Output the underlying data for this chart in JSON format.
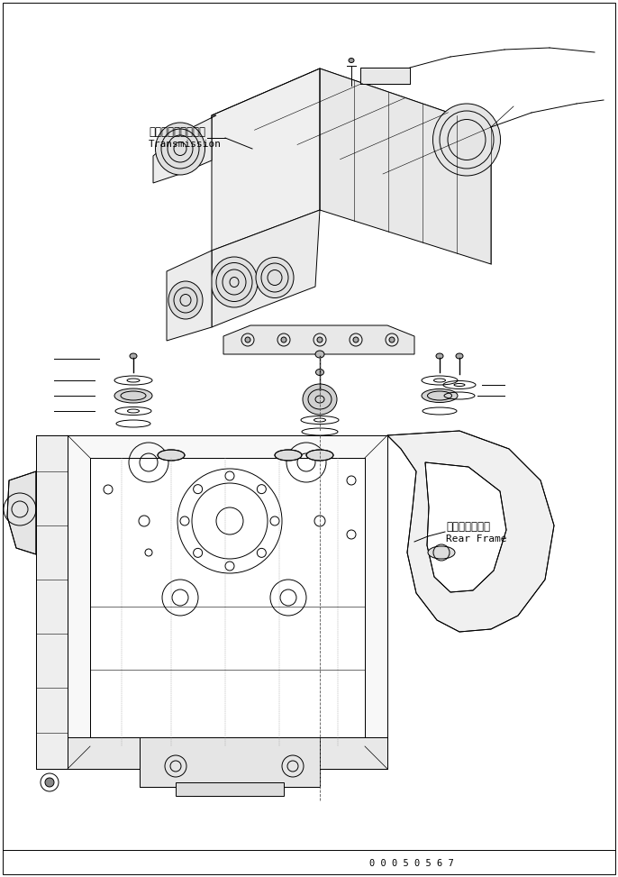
{
  "bg_color": "#ffffff",
  "line_color": "#000000",
  "label_transmission_jp": "トランスミッション",
  "label_transmission_en": "Transmission",
  "label_rearframe_jp": "リヤーフレーム",
  "label_rearframe_en": "Rear Frame",
  "part_number": "0 0 0 5 0 5 6 7",
  "font_size_label": 8.5,
  "font_size_part": 7.5
}
